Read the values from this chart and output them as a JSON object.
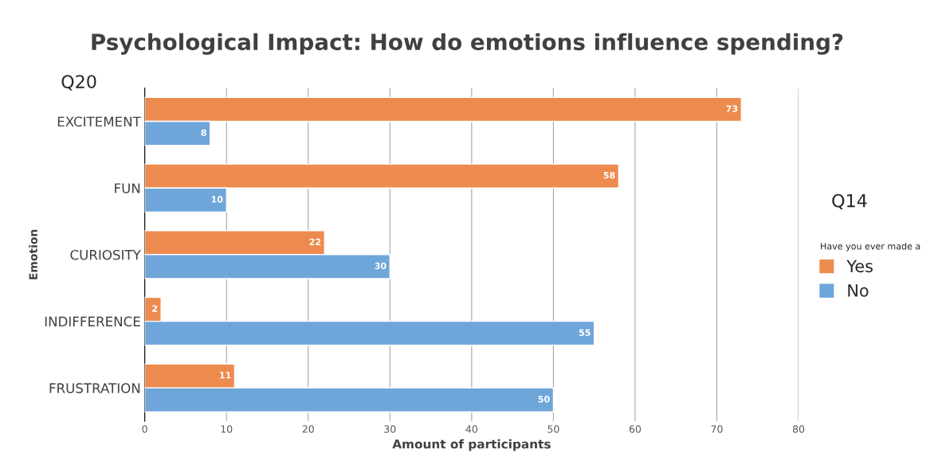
{
  "chart_data": {
    "type": "bar",
    "orientation": "horizontal",
    "title": "Psychological Impact: How do emotions influence spending?",
    "xlabel": "Amount of participants",
    "ylabel": "Emotion",
    "legend_title": "Have you ever made a",
    "categories": [
      "EXCITEMENT",
      "FUN",
      "CURIOSITY",
      "INDIFFERENCE",
      "FRUSTRATION"
    ],
    "series": [
      {
        "name": "Yes",
        "color": "#ed8b4f",
        "values": [
          73,
          58,
          22,
          2,
          11
        ]
      },
      {
        "name": "No",
        "color": "#6fa6da",
        "values": [
          8,
          10,
          30,
          55,
          50
        ]
      }
    ],
    "xlim": [
      0,
      80
    ],
    "xticks": [
      0,
      10,
      20,
      30,
      40,
      50,
      60,
      70,
      80
    ],
    "grid": "x",
    "legend": "right",
    "data_labels": true,
    "annotations": [
      "Q20",
      "Q14"
    ]
  }
}
